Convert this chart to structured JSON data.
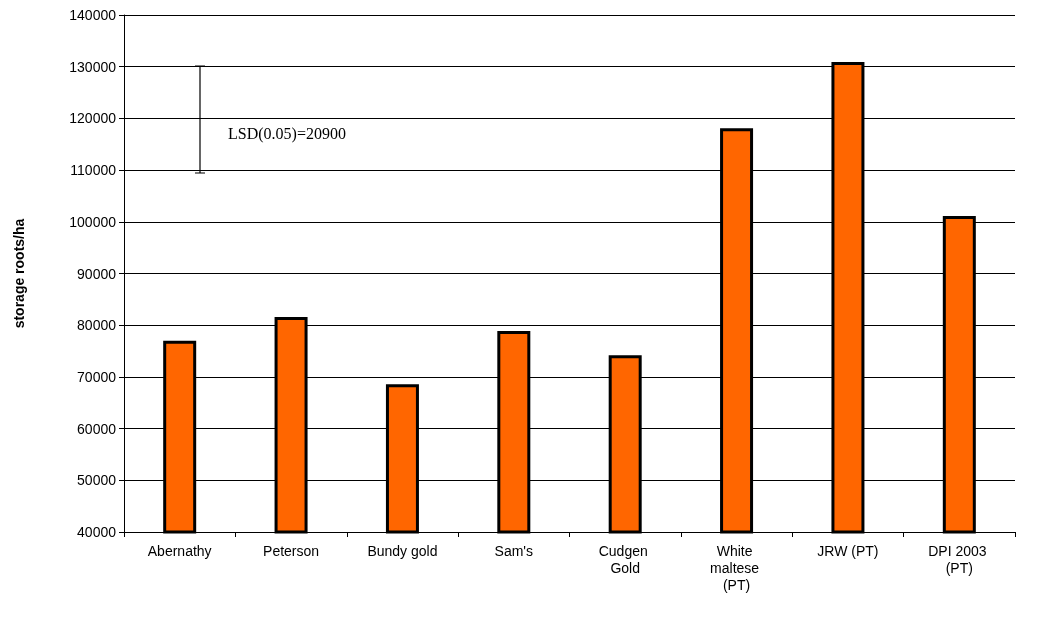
{
  "chart_data": {
    "type": "bar",
    "ylabel": "storage roots/ha",
    "categories": [
      "Abernathy",
      "Peterson",
      "Bundy gold",
      "Sam's",
      "Cudgen Gold",
      "White maltese (PT)",
      "JRW (PT)",
      "DPI 2003 (PT)"
    ],
    "values": [
      77000,
      81600,
      68600,
      78900,
      74200,
      118100,
      130900,
      101100
    ],
    "color": "#ff6600",
    "ylim": [
      40000,
      140000
    ],
    "yticks": [
      40000,
      50000,
      60000,
      70000,
      80000,
      90000,
      100000,
      110000,
      120000,
      130000,
      140000
    ],
    "grid": "y",
    "annotations": [
      "LSD(0.05)=20900"
    ]
  }
}
